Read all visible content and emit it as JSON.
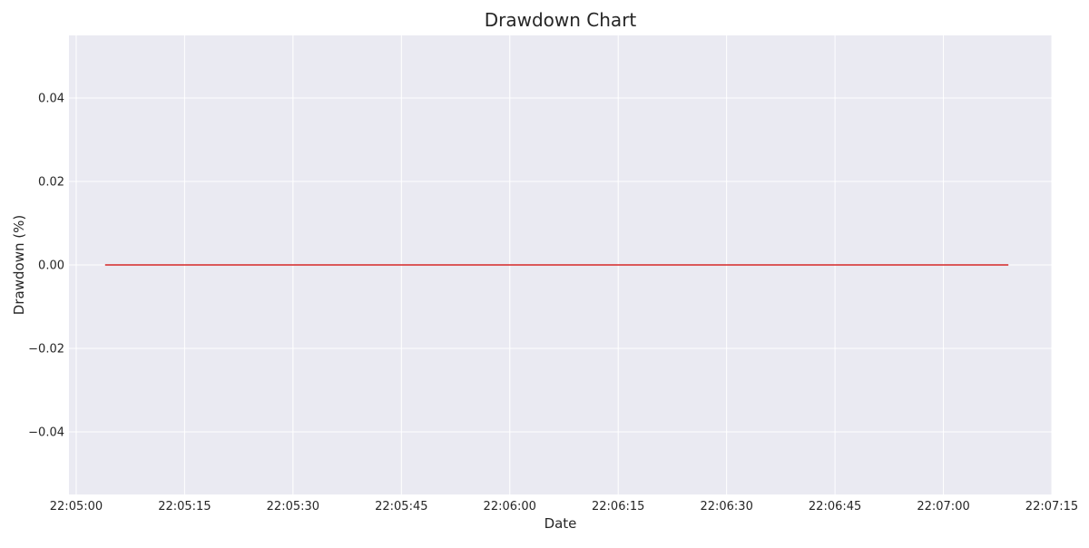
{
  "chart_data": {
    "type": "line",
    "title": "Drawdown Chart",
    "xlabel": "Date",
    "ylabel": "Drawdown (%)",
    "x_tick_labels": [
      "22:05:00",
      "22:05:15",
      "22:05:30",
      "22:05:45",
      "22:06:00",
      "22:06:15",
      "22:06:30",
      "22:06:45",
      "22:07:00",
      "22:07:15"
    ],
    "y_tick_labels": [
      "−0.04",
      "−0.02",
      "0.00",
      "0.02",
      "0.04"
    ],
    "y_ticks": [
      -0.04,
      -0.02,
      0.0,
      0.02,
      0.04
    ],
    "xlim": [
      "22:04:59",
      "22:07:15"
    ],
    "ylim": [
      -0.055,
      0.055
    ],
    "grid": true,
    "series": [
      {
        "color": "#d62728",
        "x": [
          "22:05:04",
          "22:07:09"
        ],
        "values": [
          0.0,
          0.0
        ]
      }
    ],
    "background_color": "#eaeaf2",
    "grid_color": "#ffffff"
  }
}
